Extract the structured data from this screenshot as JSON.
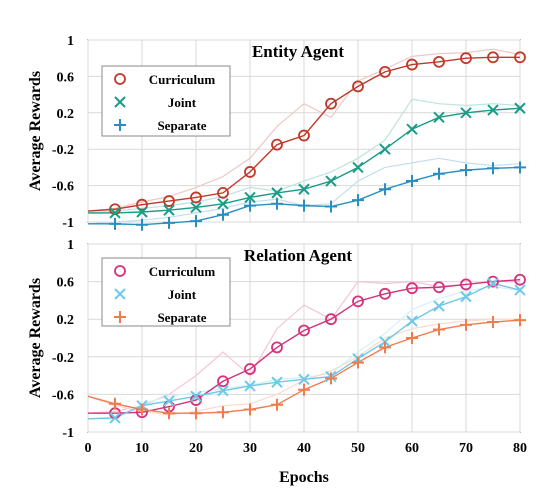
{
  "chart_data": [
    {
      "type": "line",
      "title": "Entity Agent",
      "xlabel": "Epochs",
      "ylabel": "Average Rewards",
      "xlim": [
        0,
        80
      ],
      "ylim": [
        -1,
        1
      ],
      "xticks": [
        "0",
        "10",
        "20",
        "30",
        "40",
        "50",
        "60",
        "70",
        "80"
      ],
      "yticks": [
        "1",
        "0.6",
        "0.2",
        "-0.2",
        "-0.6",
        "-1"
      ],
      "grid": true,
      "legend_position": "top-left",
      "series": [
        {
          "name": "Curriculum",
          "color": "#c0392b",
          "marker": "circle",
          "x": [
            0,
            5,
            10,
            15,
            20,
            25,
            30,
            35,
            40,
            45,
            50,
            55,
            60,
            65,
            70,
            75,
            80
          ],
          "y": [
            -0.88,
            -0.86,
            -0.81,
            -0.77,
            -0.73,
            -0.68,
            -0.45,
            -0.15,
            -0.05,
            0.3,
            0.49,
            0.65,
            0.73,
            0.76,
            0.8,
            0.81,
            0.81
          ],
          "raw": [
            -0.88,
            -0.85,
            -0.78,
            -0.72,
            -0.62,
            -0.5,
            -0.3,
            0.05,
            0.3,
            0.15,
            0.55,
            0.68,
            0.82,
            0.85,
            0.86,
            0.9,
            0.84
          ]
        },
        {
          "name": "Joint",
          "color": "#1a9c87",
          "marker": "x",
          "x": [
            0,
            5,
            10,
            15,
            20,
            25,
            30,
            35,
            40,
            45,
            50,
            55,
            60,
            65,
            70,
            75,
            80
          ],
          "y": [
            -0.9,
            -0.9,
            -0.89,
            -0.87,
            -0.84,
            -0.8,
            -0.73,
            -0.68,
            -0.64,
            -0.55,
            -0.4,
            -0.2,
            0.02,
            0.15,
            0.2,
            0.23,
            0.25
          ],
          "raw": [
            -0.9,
            -0.88,
            -0.85,
            -0.82,
            -0.78,
            -0.72,
            -0.62,
            -0.66,
            -0.55,
            -0.45,
            -0.3,
            -0.1,
            0.35,
            0.3,
            0.28,
            0.3,
            0.28
          ]
        },
        {
          "name": "Separate",
          "color": "#2a8fc0",
          "marker": "plus",
          "x": [
            0,
            5,
            10,
            15,
            20,
            25,
            30,
            35,
            40,
            45,
            50,
            55,
            60,
            65,
            70,
            75,
            80
          ],
          "y": [
            -1.02,
            -1.02,
            -1.03,
            -1.01,
            -0.99,
            -0.92,
            -0.82,
            -0.8,
            -0.82,
            -0.83,
            -0.76,
            -0.64,
            -0.55,
            -0.47,
            -0.43,
            -0.41,
            -0.4
          ],
          "raw": [
            -1.02,
            -1.0,
            -0.98,
            -0.95,
            -0.9,
            -0.85,
            -0.78,
            -0.75,
            -0.82,
            -0.8,
            -0.55,
            -0.4,
            -0.35,
            -0.3,
            -0.35,
            -0.38,
            -0.36
          ]
        }
      ]
    },
    {
      "type": "line",
      "title": "Relation Agent",
      "xlabel": "Epochs",
      "ylabel": "Average Rewards",
      "xlim": [
        0,
        80
      ],
      "ylim": [
        -1,
        1
      ],
      "xticks": [
        "0",
        "10",
        "20",
        "30",
        "40",
        "50",
        "60",
        "70",
        "80"
      ],
      "yticks": [
        "1",
        "0.6",
        "0.2",
        "-0.2",
        "-0.6",
        "-1"
      ],
      "grid": true,
      "legend_position": "top-left",
      "series": [
        {
          "name": "Curriculum",
          "color": "#d6317a",
          "marker": "circle",
          "x": [
            0,
            5,
            10,
            15,
            20,
            25,
            30,
            35,
            40,
            45,
            50,
            55,
            60,
            65,
            70,
            75,
            80
          ],
          "y": [
            -0.8,
            -0.8,
            -0.79,
            -0.73,
            -0.66,
            -0.46,
            -0.33,
            -0.1,
            0.08,
            0.2,
            0.39,
            0.47,
            0.53,
            0.54,
            0.57,
            0.6,
            0.62
          ],
          "raw": [
            -0.8,
            -0.78,
            -0.72,
            -0.6,
            -0.4,
            -0.15,
            -0.4,
            0.1,
            0.35,
            0.2,
            0.6,
            0.58,
            0.6,
            0.55,
            0.57,
            0.6,
            0.6
          ]
        },
        {
          "name": "Joint",
          "color": "#6ec9e8",
          "marker": "x",
          "x": [
            0,
            5,
            10,
            15,
            20,
            25,
            30,
            35,
            40,
            45,
            50,
            55,
            60,
            65,
            70,
            75,
            80
          ],
          "y": [
            -0.86,
            -0.85,
            -0.72,
            -0.67,
            -0.62,
            -0.56,
            -0.51,
            -0.47,
            -0.44,
            -0.41,
            -0.22,
            -0.04,
            0.18,
            0.34,
            0.44,
            0.58,
            0.51
          ],
          "raw": [
            -0.86,
            -0.84,
            -0.7,
            -0.62,
            -0.58,
            -0.54,
            -0.5,
            -0.44,
            -0.42,
            -0.38,
            -0.15,
            0.05,
            0.3,
            0.42,
            0.5,
            0.55,
            0.5
          ]
        },
        {
          "name": "Separate",
          "color": "#f07c4e",
          "marker": "plus",
          "x": [
            0,
            5,
            10,
            15,
            20,
            25,
            30,
            35,
            40,
            45,
            50,
            55,
            60,
            65,
            70,
            75,
            80
          ],
          "y": [
            -0.62,
            -0.7,
            -0.76,
            -0.8,
            -0.8,
            -0.79,
            -0.76,
            -0.71,
            -0.55,
            -0.43,
            -0.26,
            -0.1,
            0.0,
            0.09,
            0.14,
            0.17,
            0.19
          ],
          "raw": [
            -0.62,
            -0.72,
            -0.78,
            -0.82,
            -0.78,
            -0.72,
            -0.7,
            -0.6,
            -0.45,
            -0.35,
            -0.2,
            0.0,
            0.1,
            0.15,
            0.18,
            0.2,
            0.2
          ]
        }
      ]
    }
  ]
}
